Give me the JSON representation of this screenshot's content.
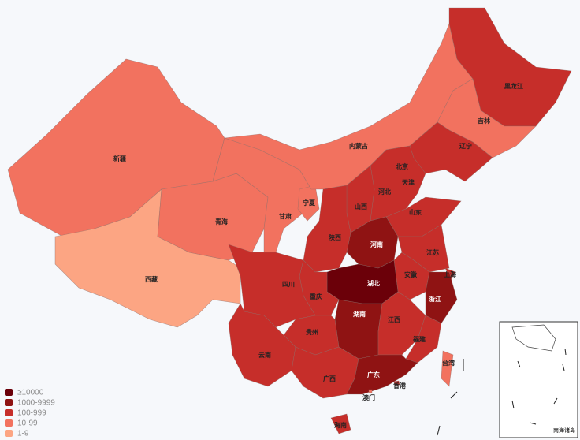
{
  "legend": [
    {
      "label": "≥10000",
      "color": "#6b0009"
    },
    {
      "label": "1000-9999",
      "color": "#8f1313"
    },
    {
      "label": "100-999",
      "color": "#c62e2a"
    },
    {
      "label": "10-99",
      "color": "#f2725f"
    },
    {
      "label": "1-9",
      "color": "#fca583"
    }
  ],
  "provinces": [
    {
      "name": "新疆",
      "level": 3
    },
    {
      "name": "西藏",
      "level": 4
    },
    {
      "name": "青海",
      "level": 3
    },
    {
      "name": "甘肃",
      "level": 3
    },
    {
      "name": "宁夏",
      "level": 3
    },
    {
      "name": "内蒙古",
      "level": 3
    },
    {
      "name": "黑龙江",
      "level": 2
    },
    {
      "name": "吉林",
      "level": 3
    },
    {
      "name": "辽宁",
      "level": 2
    },
    {
      "name": "北京",
      "level": 2
    },
    {
      "name": "天津",
      "level": 2
    },
    {
      "name": "河北",
      "level": 2
    },
    {
      "name": "山西",
      "level": 2
    },
    {
      "name": "山东",
      "level": 2
    },
    {
      "name": "河南",
      "level": 1
    },
    {
      "name": "陕西",
      "level": 2
    },
    {
      "name": "江苏",
      "level": 2
    },
    {
      "name": "安徽",
      "level": 2
    },
    {
      "name": "上海",
      "level": 2
    },
    {
      "name": "湖北",
      "level": 0
    },
    {
      "name": "重庆",
      "level": 2
    },
    {
      "name": "四川",
      "level": 2
    },
    {
      "name": "浙江",
      "level": 1
    },
    {
      "name": "湖南",
      "level": 1
    },
    {
      "name": "江西",
      "level": 2
    },
    {
      "name": "贵州",
      "level": 2
    },
    {
      "name": "福建",
      "level": 2
    },
    {
      "name": "云南",
      "level": 2
    },
    {
      "name": "广西",
      "level": 2
    },
    {
      "name": "广东",
      "level": 1
    },
    {
      "name": "香港",
      "level": 2
    },
    {
      "name": "澳门",
      "level": 3
    },
    {
      "name": "台湾",
      "level": 3
    },
    {
      "name": "海南",
      "level": 2
    }
  ],
  "inset_label": "南海诸岛"
}
